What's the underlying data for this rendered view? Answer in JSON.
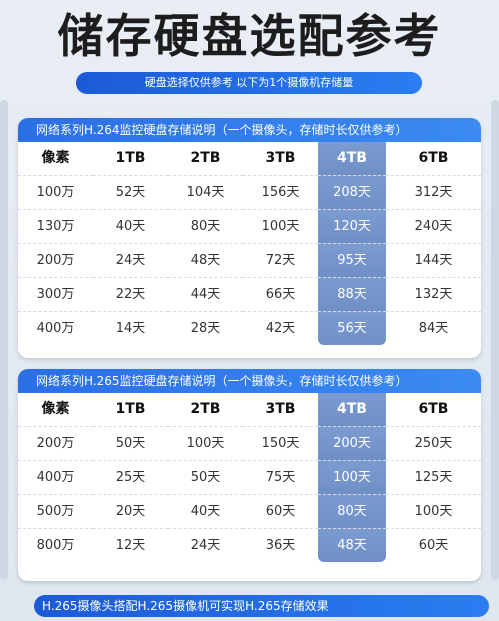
{
  "title": "储存硬盘选配参考",
  "subtitle": "硬盘选择仅供参考 以下为1个摄像机存储量",
  "table1": {
    "header": "网络系列H.264监控硬盘存储说明（一个摄像头，存储时长仅供参考）",
    "columns": [
      "像素",
      "1TB",
      "2TB",
      "3TB",
      "4TB",
      "6TB"
    ],
    "rows": [
      [
        "100万",
        "52天",
        "104天",
        "156天",
        "208天",
        "312天"
      ],
      [
        "130万",
        "40天",
        "80天",
        "100天",
        "120天",
        "240天"
      ],
      [
        "200万",
        "24天",
        "48天",
        "72天",
        "95天",
        "144天"
      ],
      [
        "300万",
        "22天",
        "44天",
        "66天",
        "88天",
        "132天"
      ],
      [
        "400万",
        "14天",
        "28天",
        "42天",
        "56天",
        "84天"
      ]
    ]
  },
  "table2": {
    "header": "网络系列H.265监控硬盘存储说明（一个摄像头，存储时长仅供参考）",
    "columns": [
      "像素",
      "1TB",
      "2TB",
      "3TB",
      "4TB",
      "6TB"
    ],
    "rows": [
      [
        "200万",
        "50天",
        "100天",
        "150天",
        "200天",
        "250天"
      ],
      [
        "400万",
        "25天",
        "50天",
        "75天",
        "100天",
        "125天"
      ],
      [
        "500万",
        "20天",
        "40天",
        "60天",
        "80天",
        "100天"
      ],
      [
        "800万",
        "12天",
        "24天",
        "36天",
        "48天",
        "60天"
      ]
    ]
  },
  "footer": "H.265摄像头搭配H.265摄像机可实现H.265存储效果",
  "colors": {
    "accent": "#2a7ef0",
    "highlight_column": "#7c9bd0"
  }
}
